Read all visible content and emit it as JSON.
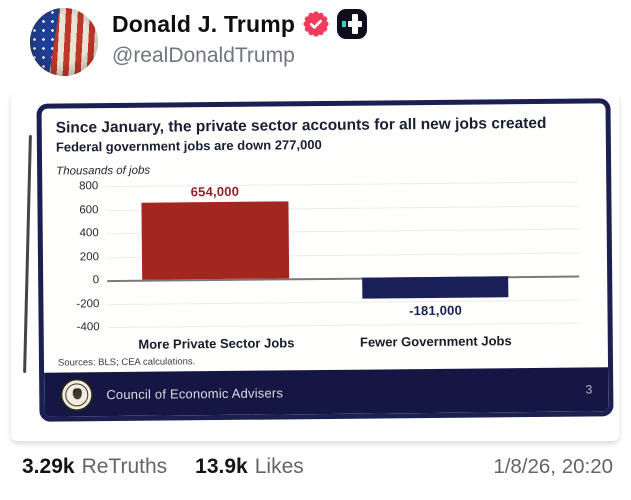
{
  "post": {
    "author": {
      "name": "Donald J. Trump",
      "handle": "@realDonaldTrump"
    },
    "badges": {
      "verified_icon": "check-seal",
      "verified_color": "#F23A5D",
      "truth_plus_icon": "plus-badge",
      "truth_plus_bg": "#0D0F1E",
      "truth_plus_accent": "#35D3C6"
    },
    "stats": {
      "retruths_count": "3.29k",
      "retruths_label": "ReTruths",
      "likes_count": "13.9k",
      "likes_label": "Likes",
      "timestamp": "1/8/26, 20:20"
    }
  },
  "slide": {
    "title": "Since January, the private sector accounts for all new jobs created",
    "subtitle": "Federal government jobs are down 277,000",
    "axis_title": "Thousands of jobs",
    "sources": "Sources: BLS; CEA calculations.",
    "border_color": "#1B1F52",
    "footer": {
      "org": "Council of Economic Advisers",
      "page": "3",
      "bg": "#141643",
      "seal_icon": "cea-seal"
    }
  },
  "chart_data": {
    "type": "bar",
    "title": "Since January, the private sector accounts for all new jobs created",
    "subtitle": "Federal government jobs are down 277,000",
    "ylabel": "Thousands of jobs",
    "categories": [
      "More Private Sector Jobs",
      "Fewer Government Jobs"
    ],
    "values": [
      654,
      -181
    ],
    "value_labels": [
      "654,000",
      "-181,000"
    ],
    "bar_colors": [
      "#A3261F",
      "#1B2058"
    ],
    "value_label_colors": [
      "#8F222B",
      "#1B2058"
    ],
    "ylim": [
      -400,
      800
    ],
    "yticks": [
      800,
      600,
      400,
      200,
      0,
      -200,
      -400
    ],
    "grid": true,
    "legend": false,
    "bar_centers_pct": [
      23,
      69.5
    ],
    "bar_width_pct": 31
  }
}
